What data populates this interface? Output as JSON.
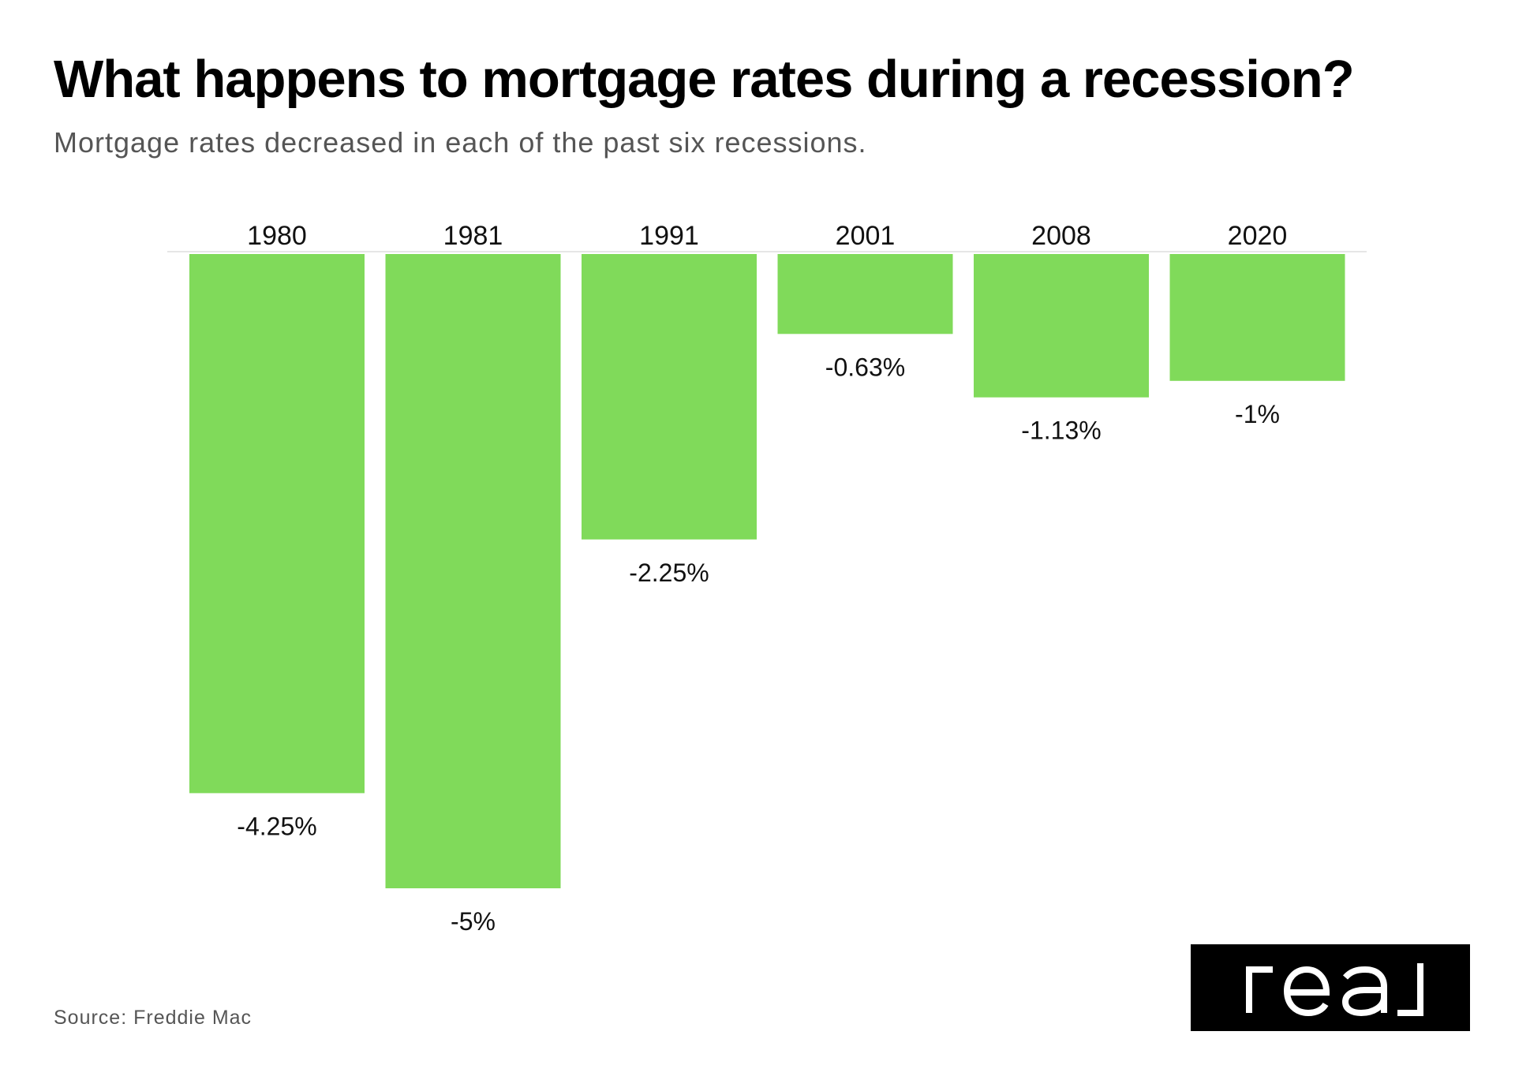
{
  "title": "What happens to mortgage rates during a recession?",
  "subtitle": "Mortgage rates decreased in each of the past six recessions.",
  "source": "Source: Freddie Mac",
  "logo": {
    "text": "real",
    "icon": "real-logo"
  },
  "colors": {
    "bar": "#80da5a",
    "text": "#111111",
    "subtitle": "#555555",
    "baseline": "#e6e6e6",
    "logo_bg": "#000000",
    "logo_fg": "#ffffff"
  },
  "chart_data": {
    "type": "bar",
    "categories": [
      "1980",
      "1981",
      "1991",
      "2001",
      "2008",
      "2020"
    ],
    "values": [
      -4.25,
      -5,
      -2.25,
      -0.63,
      -1.13,
      -1
    ],
    "value_labels": [
      "-4.25%",
      "-5%",
      "-2.25%",
      "-0.63%",
      "-1.13%",
      "-1%"
    ],
    "ylim": [
      -5,
      0
    ],
    "xlabel": "",
    "ylabel": "",
    "grid": false,
    "legend": "none",
    "category_label_position": "top"
  }
}
